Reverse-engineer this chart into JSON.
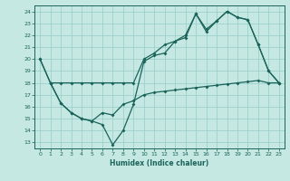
{
  "xlabel": "Humidex (Indice chaleur)",
  "bg_color": "#c5e8e3",
  "grid_color": "#96ccc8",
  "line_color": "#1a6358",
  "xlim": [
    -0.5,
    23.5
  ],
  "ylim": [
    12.5,
    24.5
  ],
  "yticks": [
    13,
    14,
    15,
    16,
    17,
    18,
    19,
    20,
    21,
    22,
    23,
    24
  ],
  "xticks": [
    0,
    1,
    2,
    3,
    4,
    5,
    6,
    7,
    8,
    9,
    10,
    11,
    12,
    13,
    14,
    15,
    16,
    17,
    18,
    19,
    20,
    21,
    22,
    23
  ],
  "line1_x": [
    0,
    1,
    2,
    3,
    4,
    5,
    6,
    7,
    8,
    9,
    10,
    11,
    12,
    13,
    14,
    15,
    16,
    17,
    18,
    19,
    20,
    21,
    22,
    23
  ],
  "line1_y": [
    20.0,
    18.0,
    18.0,
    18.0,
    18.0,
    18.0,
    18.0,
    18.0,
    18.0,
    18.0,
    20.0,
    20.5,
    21.2,
    21.5,
    22.0,
    23.8,
    22.5,
    23.2,
    24.0,
    23.5,
    23.3,
    21.2,
    19.0,
    18.0
  ],
  "line2_x": [
    0,
    1,
    2,
    3,
    4,
    5,
    6,
    7,
    8,
    9,
    10,
    11,
    12,
    13,
    14,
    15,
    16,
    17,
    18,
    19,
    20,
    21,
    22,
    23
  ],
  "line2_y": [
    20.0,
    18.0,
    16.3,
    15.5,
    15.0,
    14.8,
    14.5,
    12.8,
    14.0,
    16.2,
    19.8,
    20.3,
    20.5,
    21.5,
    21.8,
    23.8,
    22.3,
    23.2,
    24.0,
    23.5,
    23.3,
    21.2,
    19.0,
    18.0
  ],
  "line3_x": [
    1,
    2,
    3,
    4,
    5,
    6,
    7,
    8,
    9,
    10,
    11,
    12,
    13,
    14,
    15,
    16,
    17,
    18,
    19,
    20,
    21,
    22,
    23
  ],
  "line3_y": [
    18.0,
    16.3,
    15.5,
    15.0,
    14.8,
    15.5,
    15.3,
    16.2,
    16.5,
    17.0,
    17.2,
    17.3,
    17.4,
    17.5,
    17.6,
    17.7,
    17.8,
    17.9,
    18.0,
    18.1,
    18.2,
    18.0,
    18.0
  ]
}
